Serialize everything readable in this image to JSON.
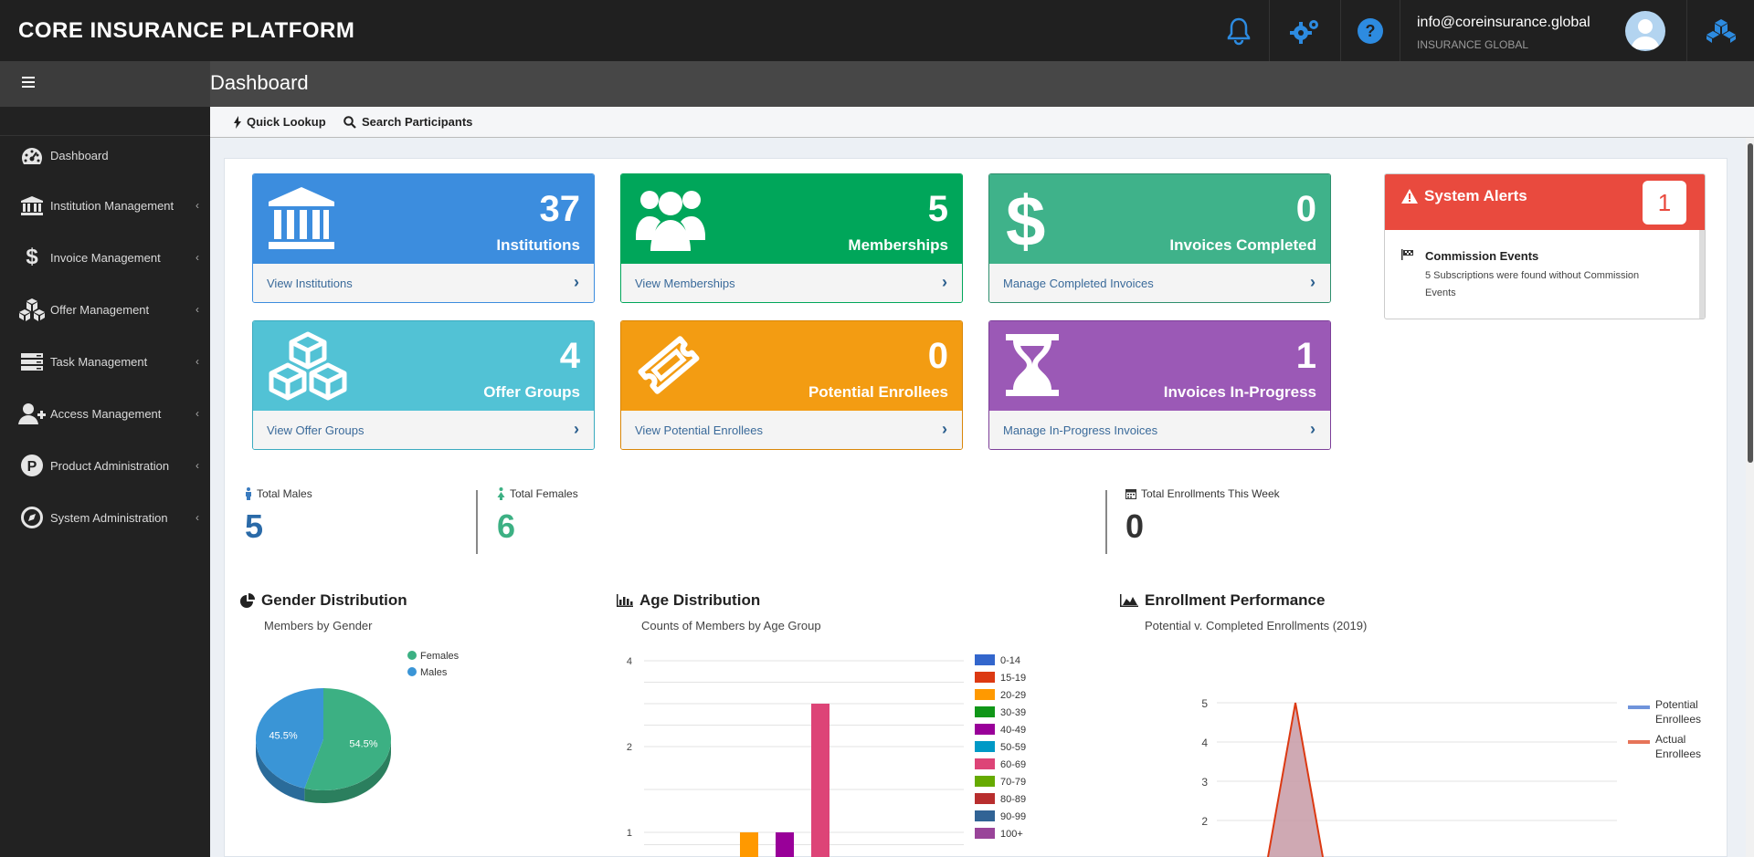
{
  "app": {
    "title": "CORE INSURANCE PLATFORM",
    "user_email": "info@coreinsurance.global",
    "user_org": "INSURANCE GLOBAL",
    "page_title": "Dashboard"
  },
  "sidebar": {
    "items": [
      {
        "label": "Dashboard",
        "icon": "dashboard-icon"
      },
      {
        "label": "Institution Management",
        "icon": "institution-icon"
      },
      {
        "label": "Invoice Management",
        "icon": "dollar-icon"
      },
      {
        "label": "Offer Management",
        "icon": "cubes-icon"
      },
      {
        "label": "Task Management",
        "icon": "server-icon"
      },
      {
        "label": "Access Management",
        "icon": "user-plus-icon"
      },
      {
        "label": "Product Administration",
        "icon": "product-icon"
      },
      {
        "label": "System Administration",
        "icon": "compass-icon"
      }
    ]
  },
  "quickbar": {
    "quick_lookup": "Quick Lookup",
    "search_participants": "Search Participants"
  },
  "tiles": [
    {
      "value": "37",
      "label": "Institutions",
      "link": "View Institutions",
      "color": "#3c8dde"
    },
    {
      "value": "5",
      "label": "Memberships",
      "link": "View Memberships",
      "color": "#00a65a"
    },
    {
      "value": "0",
      "label": "Invoices Completed",
      "link": "Manage Completed Invoices",
      "color": "#3fb28a"
    },
    {
      "value": "4",
      "label": "Offer Groups",
      "link": "View Offer Groups",
      "color": "#52c2d5"
    },
    {
      "value": "0",
      "label": "Potential Enrollees",
      "link": "View Potential Enrollees",
      "color": "#f39c12"
    },
    {
      "value": "1",
      "label": "Invoices In-Progress",
      "link": "Manage In-Progress Invoices",
      "color": "#9b59b6"
    }
  ],
  "alerts": {
    "title": "System Alerts",
    "count": "1",
    "event_title": "Commission Events",
    "event_desc": "5 Subscriptions were found without Commission Events"
  },
  "stats": {
    "males_label": "Total Males",
    "males_value": "5",
    "females_label": "Total Females",
    "females_value": "6",
    "week_label": "Total Enrollments This Week",
    "week_value": "0"
  },
  "charts": {
    "gender_title": "Gender Distribution",
    "gender_sub": "Members by Gender",
    "age_title": "Age Distribution",
    "age_sub": "Counts of Members by Age Group",
    "perf_title": "Enrollment Performance",
    "perf_sub": "Potential v. Completed Enrollments (2019)"
  },
  "chart_data": [
    {
      "type": "pie",
      "title": "Gender Distribution",
      "subtitle": "Members by Gender",
      "categories": [
        "Females",
        "Males"
      ],
      "values": [
        54.5,
        45.5
      ],
      "colors": [
        "#3cb083",
        "#3a95d6"
      ],
      "labels": [
        "54.5%",
        "45.5%"
      ],
      "legend": "top-right"
    },
    {
      "type": "bar",
      "title": "Age Distribution",
      "subtitle": "Counts of Members by Age Group",
      "categories": [
        "0-14",
        "15-19",
        "20-29",
        "30-39",
        "40-49",
        "50-59",
        "60-69",
        "70-79",
        "80-89",
        "90-99",
        "100+"
      ],
      "colors": [
        "#3366cc",
        "#dc3912",
        "#ff9900",
        "#109618",
        "#990099",
        "#0099c6",
        "#dd4477",
        "#66aa00",
        "#b82e2e",
        "#316395",
        "#994499"
      ],
      "values": [
        0,
        0,
        1,
        0,
        1,
        0,
        3,
        0,
        0,
        0,
        0
      ],
      "y_ticks": [
        "1",
        "2",
        "4"
      ],
      "y_tick_values": [
        1,
        2,
        4
      ],
      "legend": "right"
    },
    {
      "type": "area",
      "title": "Enrollment Performance",
      "subtitle": "Potential v. Completed Enrollments (2019)",
      "series": [
        {
          "name": "Potential Enrollees",
          "color": "#3366cc"
        },
        {
          "name": "Actual Enrollees",
          "color": "#dc3912"
        }
      ],
      "y_ticks": [
        "2",
        "3",
        "4",
        "5"
      ],
      "y_tick_values": [
        2,
        3,
        4,
        5
      ],
      "peak_value": 5,
      "legend": "right"
    }
  ]
}
